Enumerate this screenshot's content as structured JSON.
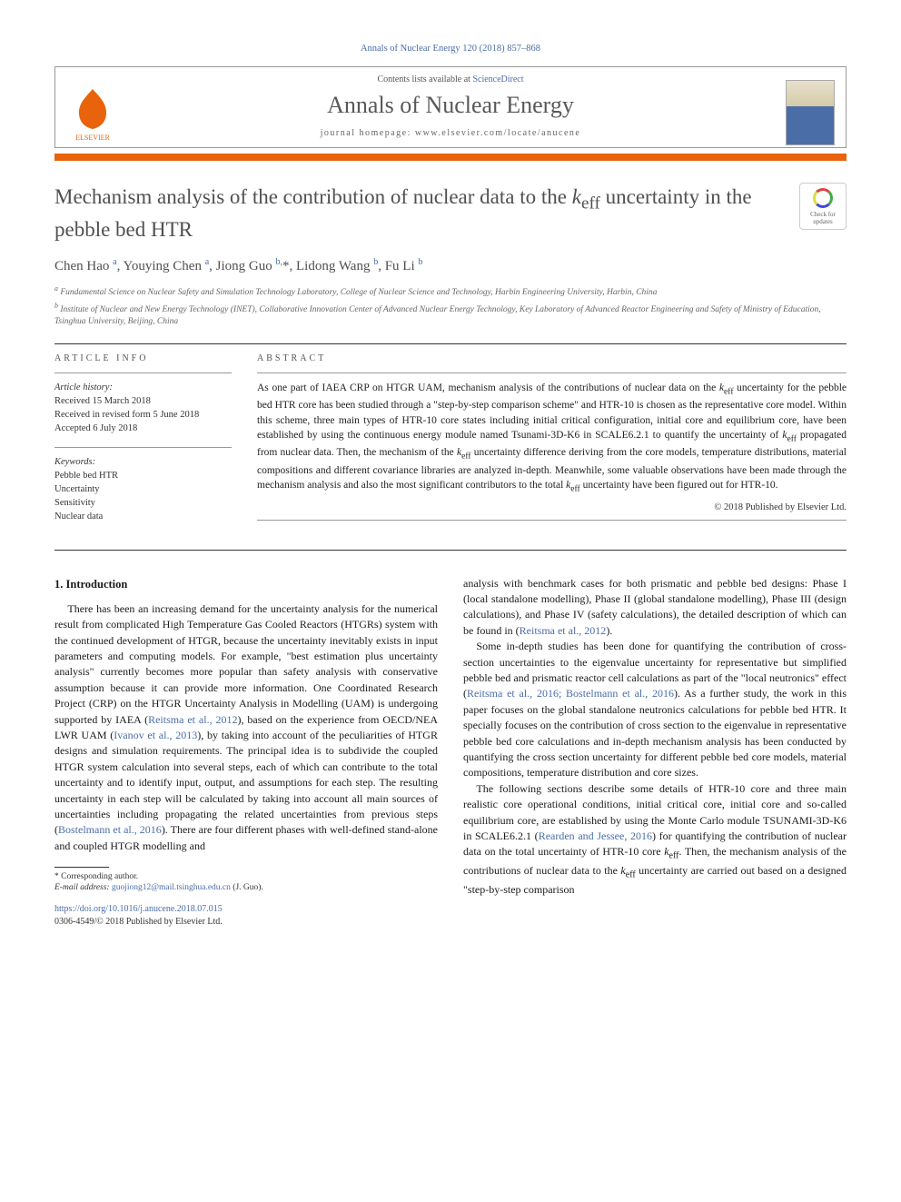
{
  "citation": "Annals of Nuclear Energy 120 (2018) 857–868",
  "header": {
    "contents_line_prefix": "Contents lists available at ",
    "contents_link": "ScienceDirect",
    "journal": "Annals of Nuclear Energy",
    "homepage_prefix": "journal homepage: ",
    "homepage": "www.elsevier.com/locate/anucene",
    "publisher_label": "ELSEVIER"
  },
  "updates_badge": {
    "line1": "Check for",
    "line2": "updates"
  },
  "title_parts": {
    "pre": "Mechanism analysis of the contribution of nuclear data to the ",
    "var": "k",
    "sub": "eff",
    "post": " uncertainty in the pebble bed HTR"
  },
  "authors_html": "Chen Hao <sup>a</sup>, Youying Chen <sup>a</sup>, Jiong Guo <sup>b,</sup>*, Lidong Wang <sup>b</sup>, Fu Li <sup>b</sup>",
  "affiliations": [
    "a Fundamental Science on Nuclear Safety and Simulation Technology Laboratory, College of Nuclear Science and Technology, Harbin Engineering University, Harbin, China",
    "b Institute of Nuclear and New Energy Technology (INET), Collaborative Innovation Center of Advanced Nuclear Energy Technology, Key Laboratory of Advanced Reactor Engineering and Safety of Ministry of Education, Tsinghua University, Beijing, China"
  ],
  "article_info": {
    "header": "ARTICLE INFO",
    "history_label": "Article history:",
    "history": [
      "Received 15 March 2018",
      "Received in revised form 5 June 2018",
      "Accepted 6 July 2018"
    ],
    "keywords_label": "Keywords:",
    "keywords": [
      "Pebble bed HTR",
      "Uncertainty",
      "Sensitivity",
      "Nuclear data"
    ]
  },
  "abstract": {
    "header": "ABSTRACT",
    "text": "As one part of IAEA CRP on HTGR UAM, mechanism analysis of the contributions of nuclear data on the k_eff uncertainty for the pebble bed HTR core has been studied through a \"step-by-step comparison scheme\" and HTR-10 is chosen as the representative core model. Within this scheme, three main types of HTR-10 core states including initial critical configuration, initial core and equilibrium core, have been established by using the continuous energy module named Tsunami-3D-K6 in SCALE6.2.1 to quantify the uncertainty of k_eff propagated from nuclear data. Then, the mechanism of the k_eff uncertainty difference deriving from the core models, temperature distributions, material compositions and different covariance libraries are analyzed in-depth. Meanwhile, some valuable observations have been made through the mechanism analysis and also the most significant contributors to the total k_eff uncertainty have been figured out for HTR-10.",
    "copyright": "© 2018 Published by Elsevier Ltd."
  },
  "section1": {
    "heading": "1. Introduction",
    "col1_p1": "There has been an increasing demand for the uncertainty analysis for the numerical result from complicated High Temperature Gas Cooled Reactors (HTGRs) system with the continued development of HTGR, because the uncertainty inevitably exists in input parameters and computing models. For example, \"best estimation plus uncertainty analysis\" currently becomes more popular than safety analysis with conservative assumption because it can provide more information. One Coordinated Research Project (CRP) on the HTGR Uncertainty Analysis in Modelling (UAM) is undergoing supported by IAEA (Reitsma et al., 2012), based on the experience from OECD/NEA LWR UAM (Ivanov et al., 2013), by taking into account of the peculiarities of HTGR designs and simulation requirements. The principal idea is to subdivide the coupled HTGR system calculation into several steps, each of which can contribute to the total uncertainty and to identify input, output, and assumptions for each step. The resulting uncertainty in each step will be calculated by taking into account all main sources of uncertainties including propagating the related uncertainties from previous steps (Bostelmann et al., 2016). There are four different phases with well-defined stand-alone and coupled HTGR modelling and",
    "col2_p1": "analysis with benchmark cases for both prismatic and pebble bed designs: Phase I (local standalone modelling), Phase II (global standalone modelling), Phase III (design calculations), and Phase IV (safety calculations), the detailed description of which can be found in (Reitsma et al., 2012).",
    "col2_p2": "Some in-depth studies has been done for quantifying the contribution of cross-section uncertainties to the eigenvalue uncertainty for representative but simplified pebble bed and prismatic reactor cell calculations as part of the \"local neutronics\" effect (Reitsma et al., 2016; Bostelmann et al., 2016). As a further study, the work in this paper focuses on the global standalone neutronics calculations for pebble bed HTR. It specially focuses on the contribution of cross section to the eigenvalue in representative pebble bed core calculations and in-depth mechanism analysis has been conducted by quantifying the cross section uncertainty for different pebble bed core models, material compositions, temperature distribution and core sizes.",
    "col2_p3": "The following sections describe some details of HTR-10 core and three main realistic core operational conditions, initial critical core, initial core and so-called equilibrium core, are established by using the Monte Carlo module TSUNAMI-3D-K6 in SCALE6.2.1 (Rearden and Jessee, 2016) for quantifying the contribution of nuclear data on the total uncertainty of HTR-10 core k_eff. Then, the mechanism analysis of the contributions of nuclear data to the k_eff uncertainty are carried out based on a designed \"step-by-step comparison"
  },
  "footnote": {
    "corr_label": "* Corresponding author.",
    "email_label": "E-mail address:",
    "email": "guojiong12@mail.tsinghua.edu.cn",
    "email_who": "(J. Guo)."
  },
  "footer": {
    "doi": "https://doi.org/10.1016/j.anucene.2018.07.015",
    "issn_copyright": "0306-4549/© 2018 Published by Elsevier Ltd."
  },
  "colors": {
    "accent_orange": "#e8630c",
    "link_blue": "#4a6da7",
    "text_gray": "#505050"
  }
}
